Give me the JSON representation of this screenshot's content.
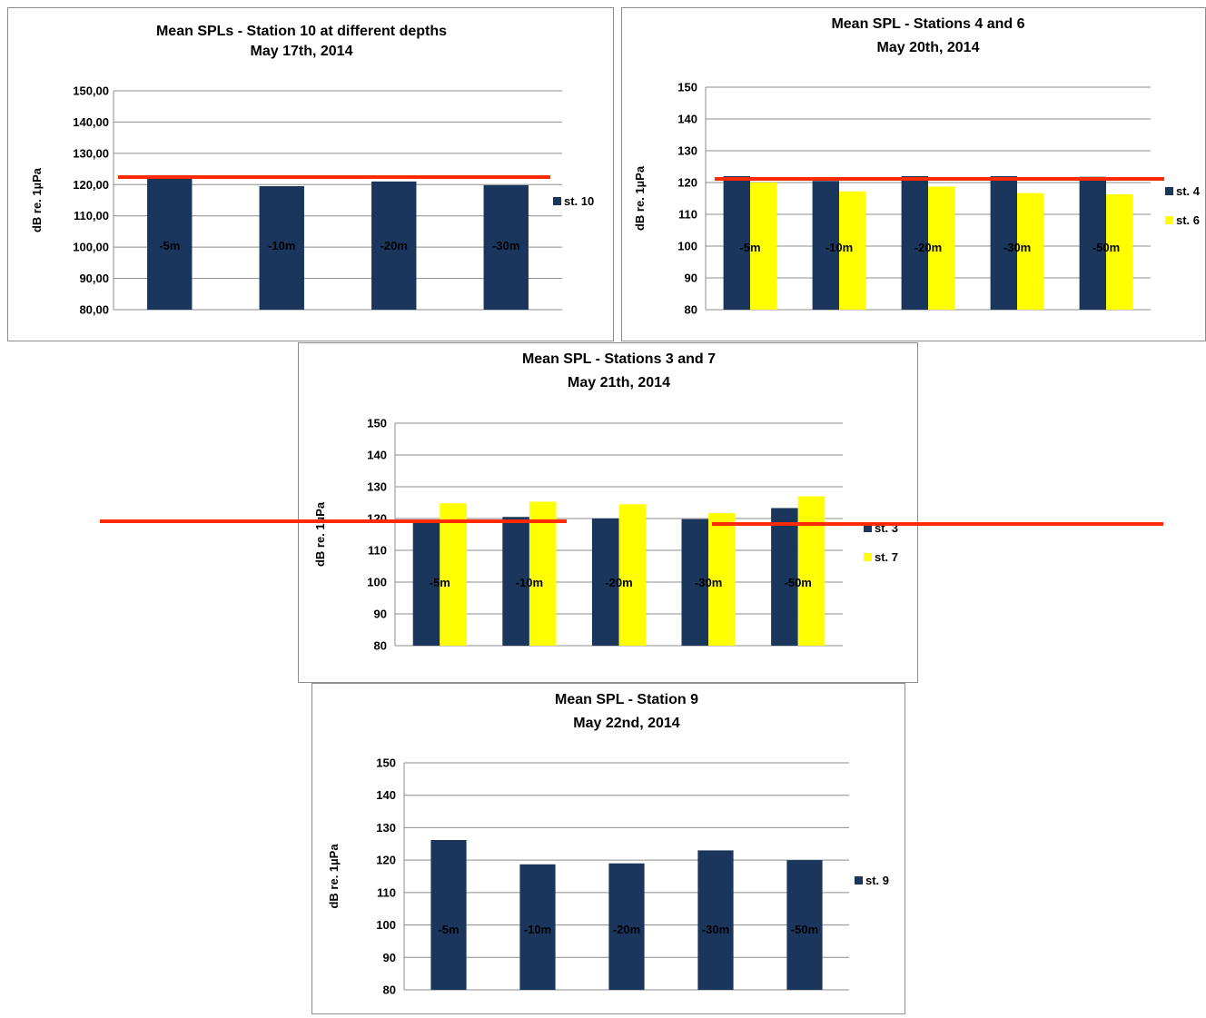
{
  "colors": {
    "dark_bar": "#1b365d",
    "yellow_bar": "#ffff00",
    "reference_line": "#ff2a00",
    "grid": "#8c8c8c",
    "text": "#000000"
  },
  "reference_line": {
    "value": 120,
    "unit": "dB re. 1µPa"
  },
  "chart_data": [
    {
      "type": "bar",
      "title": "Mean SPLs - Station 10 at different depths",
      "subtitle": "May 17th, 2014",
      "ylabel": "dB re. 1µPa",
      "xlabel": "",
      "ylim": [
        80,
        150
      ],
      "yticks": [
        "80,00",
        "90,00",
        "100,00",
        "110,00",
        "120,00",
        "130,00",
        "140,00",
        "150,00"
      ],
      "categories": [
        "-5m",
        "-10m",
        "-20m",
        "-30m"
      ],
      "series": [
        {
          "name": "st. 10",
          "color": "#1b365d",
          "values": [
            122,
            119.5,
            121,
            119.8
          ]
        }
      ],
      "grid": true,
      "legend": "right"
    },
    {
      "type": "bar",
      "title": "Mean SPL - Stations 4 and 6",
      "subtitle": "May 20th, 2014",
      "ylabel": "dB re. 1µPa",
      "xlabel": "",
      "ylim": [
        80,
        150
      ],
      "yticks": [
        "80",
        "90",
        "100",
        "110",
        "120",
        "130",
        "140",
        "150"
      ],
      "categories": [
        "-5m",
        "-10m",
        "-20m",
        "-30m",
        "-50m"
      ],
      "series": [
        {
          "name": "st. 4",
          "color": "#1b365d",
          "values": [
            122,
            120.5,
            122,
            122,
            121.8
          ]
        },
        {
          "name": "st. 6",
          "color": "#ffff00",
          "values": [
            120,
            117.2,
            118.7,
            116.7,
            116.3
          ]
        }
      ],
      "grid": true,
      "legend": "right"
    },
    {
      "type": "bar",
      "title": "Mean SPL - Stations 3 and 7",
      "subtitle": "May 21th, 2014",
      "ylabel": "dB re. 1µPa",
      "xlabel": "",
      "ylim": [
        80,
        150
      ],
      "yticks": [
        "80",
        "90",
        "100",
        "110",
        "120",
        "130",
        "140",
        "150"
      ],
      "categories": [
        "-5m",
        "-10m",
        "-20m",
        "-30m",
        "-50m"
      ],
      "series": [
        {
          "name": "st. 3",
          "color": "#1b365d",
          "values": [
            119.5,
            120.5,
            120,
            119.8,
            123.3
          ]
        },
        {
          "name": "st. 7",
          "color": "#ffff00",
          "values": [
            124.8,
            125.3,
            124.5,
            121.7,
            127
          ]
        }
      ],
      "grid": true,
      "legend": "right"
    },
    {
      "type": "bar",
      "title": "Mean SPL - Station 9",
      "subtitle": "May 22nd, 2014",
      "ylabel": "dB re. 1µPa",
      "xlabel": "",
      "ylim": [
        80,
        150
      ],
      "yticks": [
        "80",
        "90",
        "100",
        "110",
        "120",
        "130",
        "140",
        "150"
      ],
      "categories": [
        "-5m",
        "-10m",
        "-20m",
        "-30m",
        "-50m"
      ],
      "series": [
        {
          "name": "st. 9",
          "color": "#1b365d",
          "values": [
            126.2,
            118.7,
            119,
            123,
            120
          ]
        }
      ],
      "grid": true,
      "legend": "right"
    }
  ]
}
